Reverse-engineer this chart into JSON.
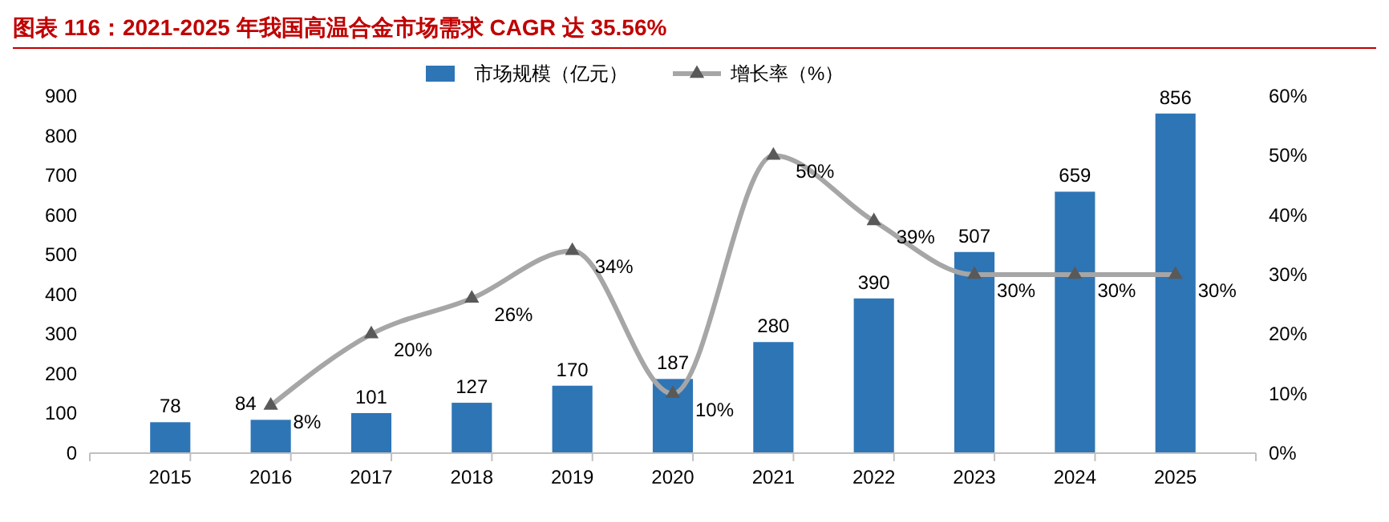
{
  "chart_data": {
    "type": "bar",
    "title": "图表 116：2021-2025 年我国高温合金市场需求 CAGR 达 35.56%",
    "categories": [
      "2015",
      "2016",
      "2017",
      "2018",
      "2019",
      "2020",
      "2021",
      "2022",
      "2023",
      "2024",
      "2025"
    ],
    "series": [
      {
        "name": "市场规模（亿元）",
        "color": "#2e75b6",
        "values": [
          78,
          84,
          101,
          127,
          170,
          187,
          280,
          390,
          507,
          659,
          856
        ],
        "value_labels": [
          "78",
          "84",
          "101",
          "127",
          "170",
          "187",
          "280",
          "390",
          "507",
          "659",
          "856"
        ]
      },
      {
        "name": "增长率（%）",
        "type": "line",
        "axis": "y2",
        "color": "#a6a6a6",
        "marker": "triangle",
        "values": [
          null,
          8,
          20,
          26,
          34,
          10,
          50,
          39,
          30,
          30,
          30
        ],
        "value_labels": [
          null,
          "8%",
          "20%",
          "26%",
          "34%",
          "10%",
          "50%",
          "39%",
          "30%",
          "30%",
          "30%"
        ]
      }
    ],
    "ylim": [
      0,
      900
    ],
    "yticks": [
      0,
      100,
      200,
      300,
      400,
      500,
      600,
      700,
      800,
      900
    ],
    "y2lim": [
      0,
      60
    ],
    "y2ticks": [
      {
        "value": 0,
        "label": "0%"
      },
      {
        "value": 10,
        "label": "10%"
      },
      {
        "value": 20,
        "label": "20%"
      },
      {
        "value": 30,
        "label": "30%"
      },
      {
        "value": 40,
        "label": "40%"
      },
      {
        "value": 50,
        "label": "50%"
      },
      {
        "value": 60,
        "label": "60%"
      }
    ],
    "legend": "top",
    "grid": false
  }
}
